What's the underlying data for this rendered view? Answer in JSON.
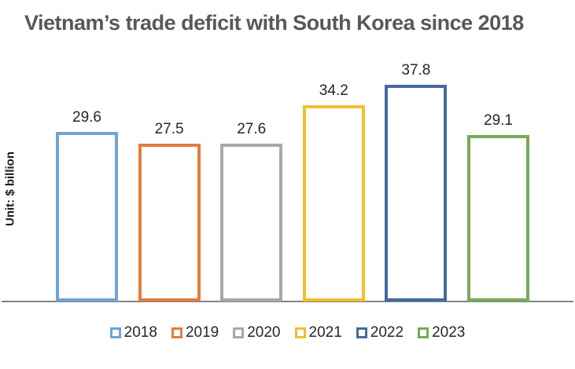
{
  "title": "Vietnam’s trade deficit with South Korea since 2018",
  "y_axis_label": "Unit: $ billion",
  "chart_data": {
    "type": "bar",
    "title": "Vietnam’s trade deficit with South Korea since 2018",
    "categories": [
      "2018",
      "2019",
      "2020",
      "2021",
      "2022",
      "2023"
    ],
    "values": [
      29.6,
      27.5,
      27.6,
      34.2,
      37.8,
      29.1
    ],
    "series_colors": [
      "#6FA3D6",
      "#E07E3C",
      "#A8A8A8",
      "#F2C02E",
      "#4669A0",
      "#76AB58"
    ],
    "bar_style": "outline",
    "xlabel": "",
    "ylabel": "Unit: $ billion",
    "ylim": [
      0,
      39.6
    ],
    "grid": false,
    "data_labels": true,
    "legend_position": "bottom",
    "axis_line_color": "#848484",
    "title_color": "#58585a",
    "label_color": "#262626"
  }
}
